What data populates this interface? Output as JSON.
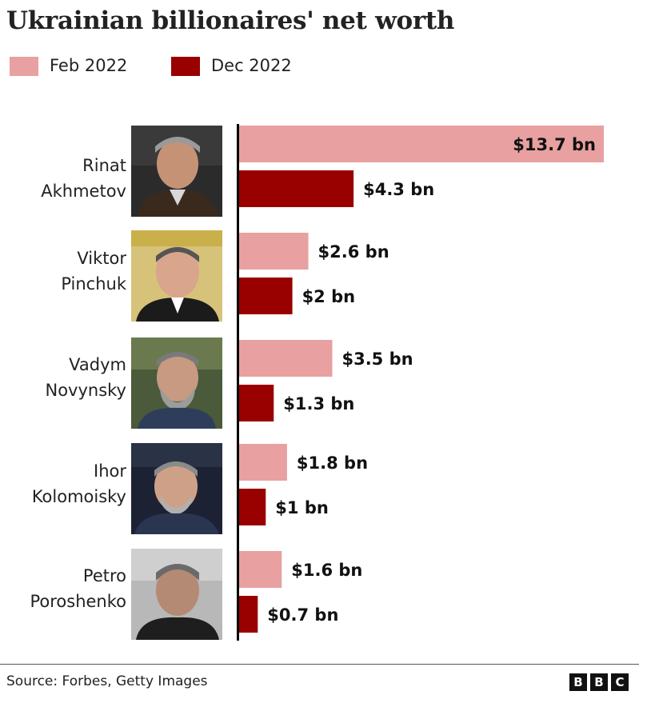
{
  "chart_data": {
    "type": "bar",
    "orientation": "horizontal",
    "title": "Ukrainian billionaires' net worth",
    "categories": [
      "Rinat Akhmetov",
      "Viktor Pinchuk",
      "Vadym Novynsky",
      "Ihor Kolomoisky",
      "Petro Poroshenko"
    ],
    "series": [
      {
        "name": "Feb 2022",
        "color": "#e8a0a0",
        "values": [
          13.7,
          2.6,
          3.5,
          1.8,
          1.6
        ]
      },
      {
        "name": "Dec 2022",
        "color": "#990000",
        "values": [
          4.3,
          2,
          1.3,
          1,
          0.7
        ]
      }
    ],
    "data_labels": [
      [
        "$13.7 bn",
        "$2.6 bn",
        "$3.5 bn",
        "$1.8 bn",
        "$1.6 bn"
      ],
      [
        "$4.3 bn",
        "$2 bn",
        "$1.3 bn",
        "$1 bn",
        "$0.7 bn"
      ]
    ],
    "legend_position": "top-left",
    "grid": false
  },
  "people": [
    {
      "first": "Rinat",
      "last": "Akhmetov",
      "photo_icon": "person-photo-icon"
    },
    {
      "first": "Viktor",
      "last": "Pinchuk",
      "photo_icon": "person-photo-icon"
    },
    {
      "first": "Vadym",
      "last": "Novynsky",
      "photo_icon": "person-photo-icon"
    },
    {
      "first": "Ihor",
      "last": "Kolomoisky",
      "photo_icon": "person-photo-icon"
    },
    {
      "first": "Petro",
      "last": "Poroshenko",
      "photo_icon": "person-photo-icon"
    }
  ],
  "footer": {
    "source": "Source: Forbes, Getty Images",
    "logo_letters": [
      "B",
      "B",
      "C"
    ]
  }
}
